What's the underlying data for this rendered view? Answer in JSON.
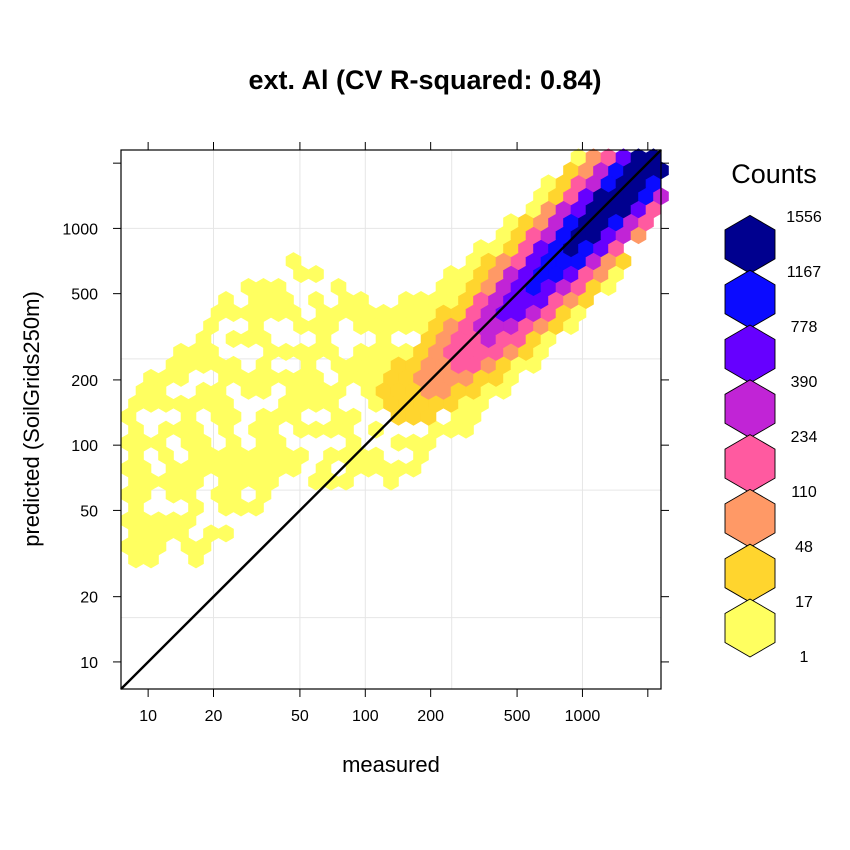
{
  "chart_data": {
    "type": "heatmap",
    "subtype": "hexbin",
    "title": "ext. Al  (CV R-squared: 0.84)",
    "xlabel": "measured",
    "ylabel": "predicted (SoilGrids250m)",
    "x_scale": "log10",
    "y_scale": "log10",
    "xlim": [
      7.5,
      2300
    ],
    "ylim": [
      7.5,
      2300
    ],
    "x_ticks": [
      10,
      20,
      50,
      100,
      200,
      500,
      1000
    ],
    "y_ticks": [
      10,
      20,
      50,
      100,
      200,
      500,
      1000
    ],
    "grid": true,
    "reference_line": "1:1",
    "legend": {
      "title": "Counts",
      "placement": "right",
      "labels": [
        "1",
        "17",
        "48",
        "110",
        "234",
        "390",
        "778",
        "1167",
        "1556"
      ],
      "colors": [
        "#FFFF60",
        "#FFD52E",
        "#FF9966",
        "#FF5AA0",
        "#C124D6",
        "#6600FF",
        "#0B0BFF",
        "#00008F"
      ]
    },
    "density_model": {
      "description": "hexbin density concentrated along the 1:1 line with predictions above measured at low values",
      "peak_count": 1556
    }
  }
}
